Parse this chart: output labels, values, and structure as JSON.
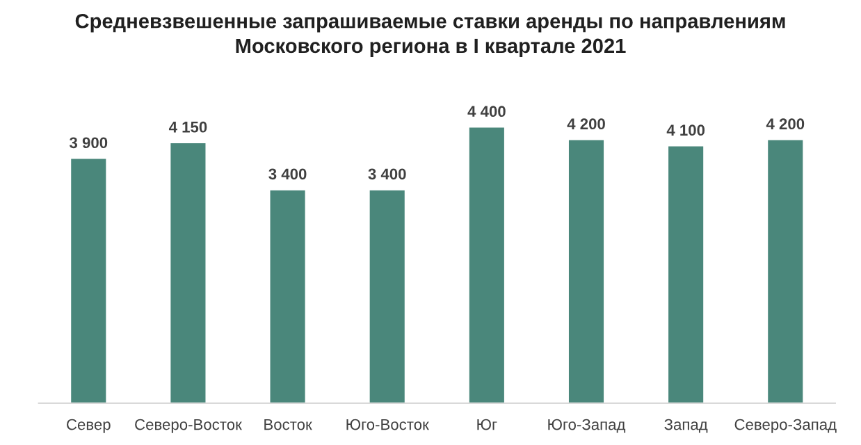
{
  "chart_data": {
    "type": "bar",
    "title": "Средневзвешенные запрашиваемые ставки аренды по направлениям\nМосковского региона в I квартале 2021",
    "categories": [
      "Север",
      "Северо-Восток",
      "Восток",
      "Юго-Восток",
      "Юг",
      "Юго-Запад",
      "Запад",
      "Северо-Запад"
    ],
    "values": [
      3900,
      4150,
      3400,
      3400,
      4400,
      4200,
      4100,
      4200
    ],
    "value_labels": [
      "3 900",
      "4 150",
      "3 400",
      "3 400",
      "4 400",
      "4 200",
      "4 100",
      "4 200"
    ],
    "color": "#4a877b"
  }
}
